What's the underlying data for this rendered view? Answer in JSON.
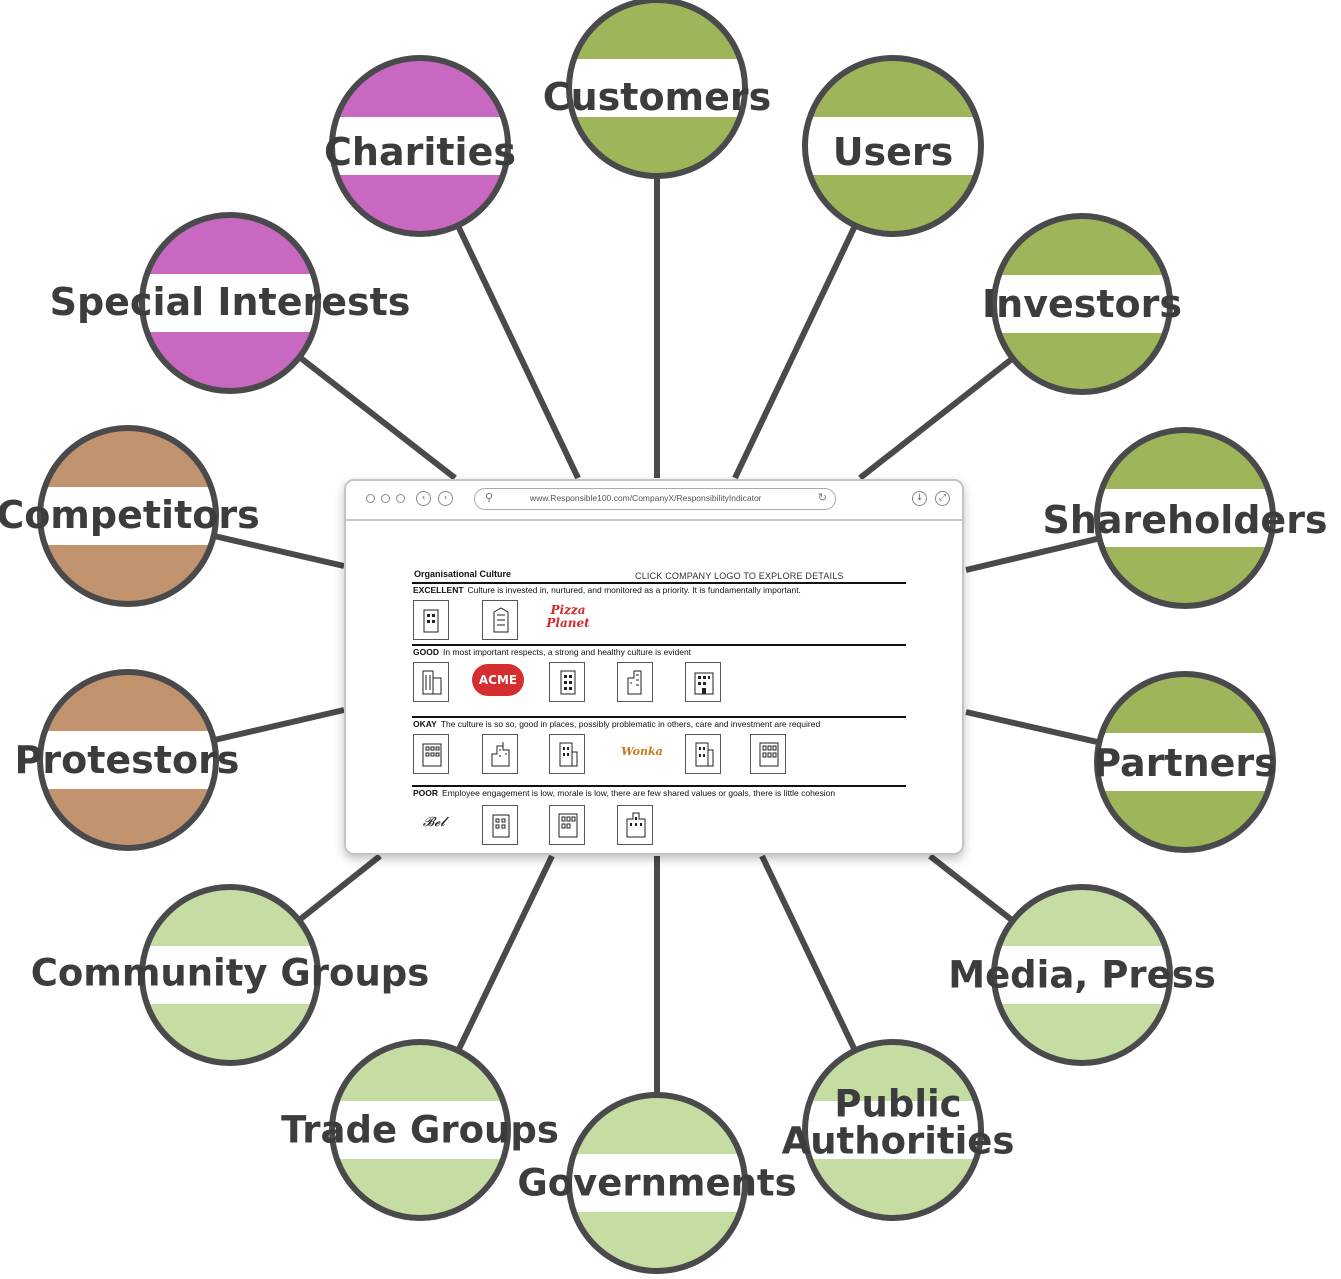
{
  "nodes": [
    {
      "label": [
        "Customers"
      ],
      "color": "#9fb55a"
    },
    {
      "label": [
        "Users"
      ],
      "color": "#9fb55a"
    },
    {
      "label": [
        "Investors"
      ],
      "color": "#9fb55a"
    },
    {
      "label": [
        "Shareholders"
      ],
      "color": "#9fb55a"
    },
    {
      "label": [
        "Partners"
      ],
      "color": "#9fb55a"
    },
    {
      "label": [
        "Media, Press"
      ],
      "color": "#c5dca2"
    },
    {
      "label": [
        "Public",
        "Authorities"
      ],
      "color": "#c5dca2"
    },
    {
      "label": [
        "Governments"
      ],
      "color": "#c5dca2"
    },
    {
      "label": [
        "Trade Groups"
      ],
      "color": "#c5dca2"
    },
    {
      "label": [
        "Community Groups"
      ],
      "color": "#c5dca2"
    },
    {
      "label": [
        "Protestors"
      ],
      "color": "#c1936e"
    },
    {
      "label": [
        "Competitors"
      ],
      "color": "#c1936e"
    },
    {
      "label": [
        "Special Interests"
      ],
      "color": "#c868c0"
    },
    {
      "label": [
        "Charities"
      ],
      "color": "#c868c0"
    }
  ],
  "colors": {
    "outline": "#4a4a4c",
    "label_text": "#3c3c3e",
    "band": "#ffffff"
  },
  "browser": {
    "url": "www.Responsible100.com/CompanyX/ResponsibilityIndicator",
    "icons": {
      "search": "search-icon",
      "reload": "reload-icon",
      "back": "back-icon",
      "forward": "forward-icon",
      "download": "download-icon",
      "expand": "expand-icon"
    }
  },
  "page": {
    "section_title": "Organisational Culture",
    "click_hint": "CLICK COMPANY LOGO TO EXPLORE DETAILS",
    "ratings": [
      {
        "name": "EXCELLENT",
        "desc": "Culture is invested in, nurtured, and monitored as a priority. It is fundamentally important.",
        "logos": [
          "building",
          "building",
          "Pizza Planet"
        ]
      },
      {
        "name": "GOOD",
        "desc": "In most important respects, a strong and healthy culture is evident",
        "logos": [
          "building",
          "ACME",
          "building",
          "building",
          "building"
        ]
      },
      {
        "name": "OKAY",
        "desc": "The culture is so so, good in places, possibly problematic in others, care and investment are required",
        "logos": [
          "building",
          "building",
          "building",
          "Wonka",
          "building",
          "building"
        ]
      },
      {
        "name": "POOR",
        "desc": "Employee engagement is low, morale is low, there are few shared values or goals, there is little cohesion",
        "logos": [
          "signature",
          "building",
          "building",
          "building"
        ]
      }
    ]
  }
}
